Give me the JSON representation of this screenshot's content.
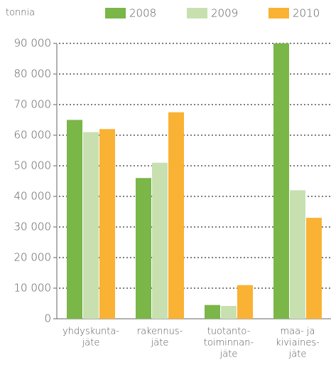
{
  "chart_data": {
    "type": "bar",
    "y_label": "tonnia",
    "categories": [
      [
        "yhdyskunta-",
        "jäte"
      ],
      [
        "rakennus-",
        "jäte"
      ],
      [
        "tuotanto-",
        "toiminnan-",
        "jäte"
      ],
      [
        "maa- ja",
        "kiviaines-",
        "jäte"
      ]
    ],
    "series": [
      {
        "name": "2008",
        "color": "#7ab648",
        "values": [
          65000,
          46000,
          4500,
          90000
        ]
      },
      {
        "name": "2009",
        "color": "#c8e0b0",
        "values": [
          61000,
          51000,
          4200,
          42000
        ]
      },
      {
        "name": "2010",
        "color": "#f9b233",
        "values": [
          62000,
          67500,
          11000,
          33000
        ]
      }
    ],
    "ylim": [
      0,
      90000
    ],
    "yticks": [
      0,
      {
        "value": 10000,
        "label": "10 000"
      },
      {
        "value": 20000,
        "label": "20 000"
      },
      {
        "value": 30000,
        "label": "30 000"
      },
      {
        "value": 40000,
        "label": "40 000"
      },
      {
        "value": 50000,
        "label": "50 000"
      },
      {
        "value": 60000,
        "label": "60 000"
      },
      {
        "value": 70000,
        "label": "70 000"
      },
      {
        "value": 80000,
        "label": "80 000"
      },
      {
        "value": 90000,
        "label": "90 000"
      }
    ],
    "grid": true,
    "legend": "top"
  }
}
